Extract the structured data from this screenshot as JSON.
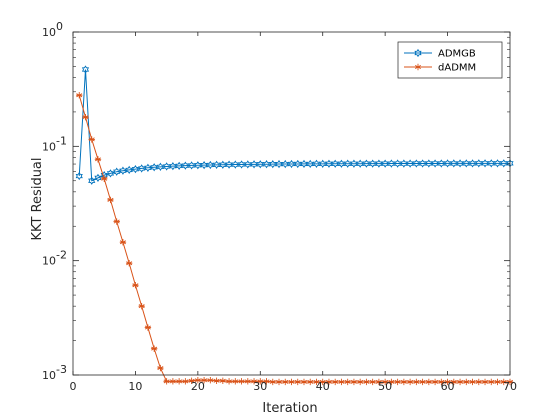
{
  "chart_data": {
    "type": "line",
    "xlabel": "Iteration",
    "ylabel": "KKT Residual",
    "xlim": [
      0,
      70
    ],
    "ylim": [
      0.001,
      1
    ],
    "y_scale": "log",
    "x_ticks": [
      0,
      10,
      20,
      30,
      40,
      50,
      60,
      70
    ],
    "x_tick_labels": [
      "0",
      "10",
      "20",
      "30",
      "40",
      "50",
      "60",
      "70"
    ],
    "y_tick_labels": [
      {
        "value": 0.001,
        "base": "10",
        "exp": "-3"
      },
      {
        "value": 0.01,
        "base": "10",
        "exp": "-2"
      },
      {
        "value": 0.1,
        "base": "10",
        "exp": "-1"
      },
      {
        "value": 1,
        "base": "10",
        "exp": "0"
      }
    ],
    "grid": false,
    "legend_position": "top-right",
    "series": [
      {
        "name": "ADMGB",
        "color": "#0072BD",
        "marker": "hexagram",
        "x": [
          1,
          2,
          3,
          4,
          5,
          6,
          7,
          8,
          9,
          10,
          11,
          12,
          13,
          14,
          15,
          16,
          17,
          18,
          19,
          20,
          21,
          22,
          23,
          24,
          25,
          26,
          27,
          28,
          29,
          30,
          31,
          32,
          33,
          34,
          35,
          36,
          37,
          38,
          39,
          40,
          41,
          42,
          43,
          44,
          45,
          46,
          47,
          48,
          49,
          50,
          51,
          52,
          53,
          54,
          55,
          56,
          57,
          58,
          59,
          60,
          61,
          62,
          63,
          64,
          65,
          66,
          67,
          68,
          69,
          70
        ],
        "y": [
          0.055,
          0.47,
          0.05,
          0.053,
          0.056,
          0.058,
          0.06,
          0.0612,
          0.0622,
          0.0632,
          0.0641,
          0.0649,
          0.0656,
          0.0662,
          0.0667,
          0.0671,
          0.0675,
          0.0678,
          0.0681,
          0.0683,
          0.0685,
          0.0687,
          0.0689,
          0.069,
          0.0692,
          0.0693,
          0.0694,
          0.0695,
          0.0696,
          0.0697,
          0.0698,
          0.0699,
          0.07,
          0.07,
          0.0701,
          0.0701,
          0.0702,
          0.0702,
          0.0703,
          0.0703,
          0.0704,
          0.0704,
          0.0704,
          0.0705,
          0.0705,
          0.0705,
          0.0706,
          0.0706,
          0.0706,
          0.0706,
          0.0707,
          0.0707,
          0.0707,
          0.0707,
          0.0708,
          0.0708,
          0.0708,
          0.0708,
          0.0708,
          0.0709,
          0.0709,
          0.0709,
          0.0709,
          0.0709,
          0.071,
          0.071,
          0.071,
          0.071,
          0.071,
          0.071
        ]
      },
      {
        "name": "dADMM",
        "color": "#D95319",
        "marker": "asterisk",
        "x": [
          1,
          2,
          3,
          4,
          5,
          6,
          7,
          8,
          9,
          10,
          11,
          12,
          13,
          14,
          15,
          16,
          17,
          18,
          19,
          20,
          21,
          22,
          23,
          24,
          25,
          26,
          27,
          28,
          29,
          30,
          31,
          32,
          33,
          34,
          35,
          36,
          37,
          38,
          39,
          40,
          41,
          42,
          43,
          44,
          45,
          46,
          47,
          48,
          49,
          50,
          51,
          52,
          53,
          54,
          55,
          56,
          57,
          58,
          59,
          60,
          61,
          62,
          63,
          64,
          65,
          66,
          67,
          68,
          69,
          70
        ],
        "y": [
          0.28,
          0.18,
          0.115,
          0.077,
          0.052,
          0.034,
          0.022,
          0.0145,
          0.0095,
          0.0061,
          0.004,
          0.0026,
          0.0017,
          0.00115,
          0.00088,
          0.00088,
          0.00088,
          0.00088,
          0.00089,
          0.0009,
          0.0009,
          0.0009,
          0.00089,
          0.00089,
          0.00088,
          0.00088,
          0.00088,
          0.00088,
          0.00088,
          0.00088,
          0.00088,
          0.00087,
          0.00087,
          0.00087,
          0.00087,
          0.00087,
          0.00087,
          0.00087,
          0.00087,
          0.00087,
          0.00087,
          0.00087,
          0.00087,
          0.00087,
          0.00087,
          0.00087,
          0.00087,
          0.00087,
          0.00087,
          0.00087,
          0.00087,
          0.00087,
          0.00087,
          0.00087,
          0.00087,
          0.00087,
          0.00087,
          0.00087,
          0.00087,
          0.00087,
          0.00087,
          0.00087,
          0.00087,
          0.00087,
          0.00087,
          0.00087,
          0.00087,
          0.00087,
          0.00087,
          0.00087
        ]
      }
    ]
  }
}
